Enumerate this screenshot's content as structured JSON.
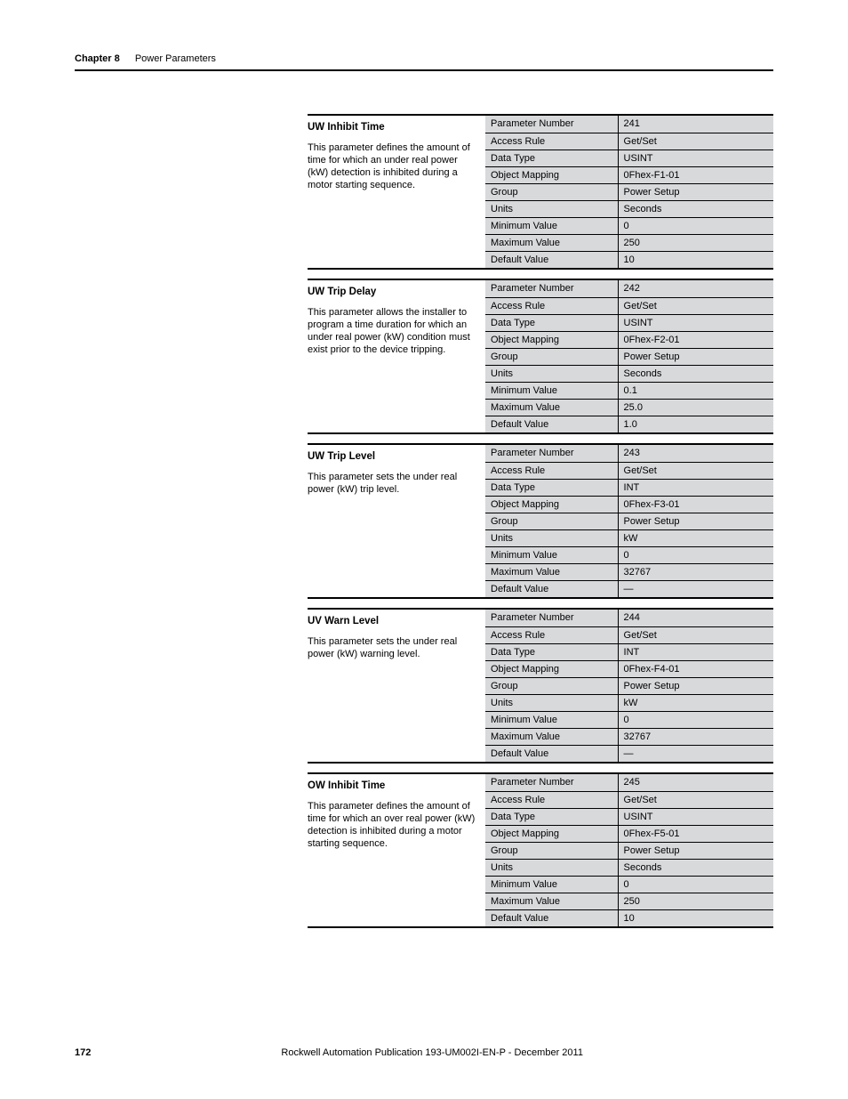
{
  "header": {
    "chapter_label": "Chapter 8",
    "chapter_title": "Power Parameters"
  },
  "footer": {
    "page_number": "172",
    "publication": "Rockwell Automation Publication 193-UM002I-EN-P - December 2011"
  },
  "row_labels": {
    "param_number": "Parameter Number",
    "access_rule": "Access Rule",
    "data_type": "Data Type",
    "object_mapping": "Object Mapping",
    "group": "Group",
    "units": "Units",
    "min": "Minimum Value",
    "max": "Maximum Value",
    "default": "Default Value"
  },
  "params": [
    {
      "title": "UW Inhibit Time",
      "desc": "This parameter defines the amount of time for which an under real power (kW) detection is inhibited during a motor starting sequence.",
      "param_number": "241",
      "access_rule": "Get/Set",
      "data_type": "USINT",
      "object_mapping": "0Fhex-F1-01",
      "group": "Power Setup",
      "units": "Seconds",
      "min": "0",
      "max": "250",
      "default": "10"
    },
    {
      "title": "UW Trip Delay",
      "desc": "This parameter allows the installer to program a time duration for which an under real power (kW) condition must exist prior to the device tripping.",
      "param_number": "242",
      "access_rule": "Get/Set",
      "data_type": "USINT",
      "object_mapping": "0Fhex-F2-01",
      "group": "Power Setup",
      "units": "Seconds",
      "min": "0.1",
      "max": "25.0",
      "default": "1.0"
    },
    {
      "title": "UW Trip Level",
      "desc": "This parameter sets the under real power (kW) trip level.",
      "param_number": "243",
      "access_rule": "Get/Set",
      "data_type": "INT",
      "object_mapping": "0Fhex-F3-01",
      "group": "Power Setup",
      "units": "kW",
      "min": "0",
      "max": "32767",
      "default": "—"
    },
    {
      "title": "UV Warn Level",
      "desc": "This parameter sets the under real power (kW) warning level.",
      "param_number": "244",
      "access_rule": "Get/Set",
      "data_type": "INT",
      "object_mapping": "0Fhex-F4-01",
      "group": "Power Setup",
      "units": "kW",
      "min": "0",
      "max": "32767",
      "default": "—"
    },
    {
      "title": "OW Inhibit Time",
      "desc": "This parameter defines the amount of time for which an over real power (kW) detection is inhibited during a motor starting sequence.",
      "param_number": "245",
      "access_rule": "Get/Set",
      "data_type": "USINT",
      "object_mapping": "0Fhex-F5-01",
      "group": "Power Setup",
      "units": "Seconds",
      "min": "0",
      "max": "250",
      "default": "10"
    }
  ]
}
